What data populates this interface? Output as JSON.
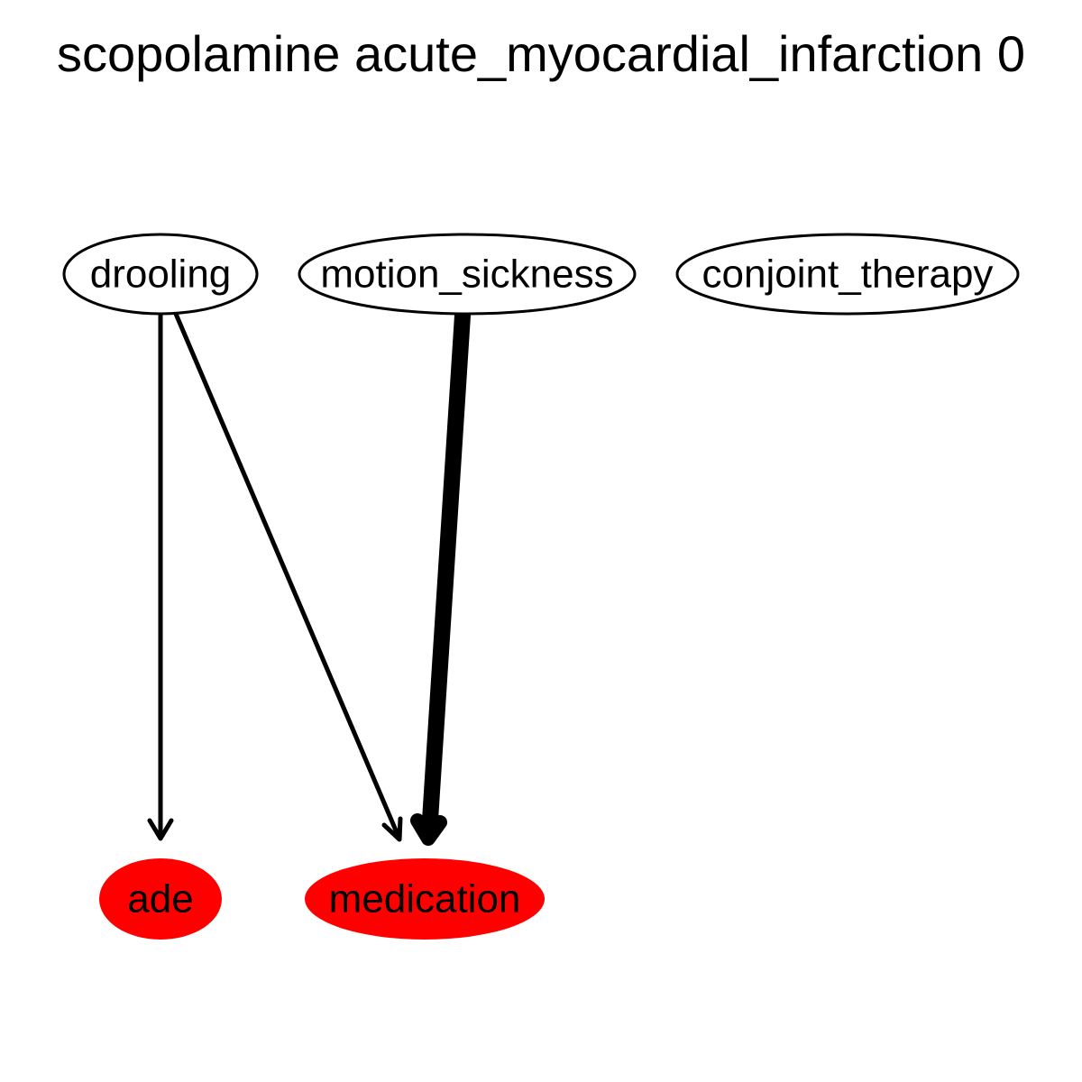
{
  "title": "scopolamine acute_myocardial_infarction 0",
  "colors": {
    "background": "#ffffff",
    "stroke": "#000000",
    "highlight": "#ff0000"
  },
  "nodes": [
    {
      "id": "drooling",
      "label": "drooling",
      "highlighted": false
    },
    {
      "id": "motion_sickness",
      "label": "motion_sickness",
      "highlighted": false
    },
    {
      "id": "conjoint_therapy",
      "label": "conjoint_therapy",
      "highlighted": false
    },
    {
      "id": "ade",
      "label": "ade",
      "highlighted": true
    },
    {
      "id": "medication",
      "label": "medication",
      "highlighted": true
    }
  ],
  "edges": [
    {
      "from": "drooling",
      "to": "ade",
      "weight": "thin"
    },
    {
      "from": "drooling",
      "to": "medication",
      "weight": "thin"
    },
    {
      "from": "motion_sickness",
      "to": "medication",
      "weight": "heavy"
    }
  ]
}
